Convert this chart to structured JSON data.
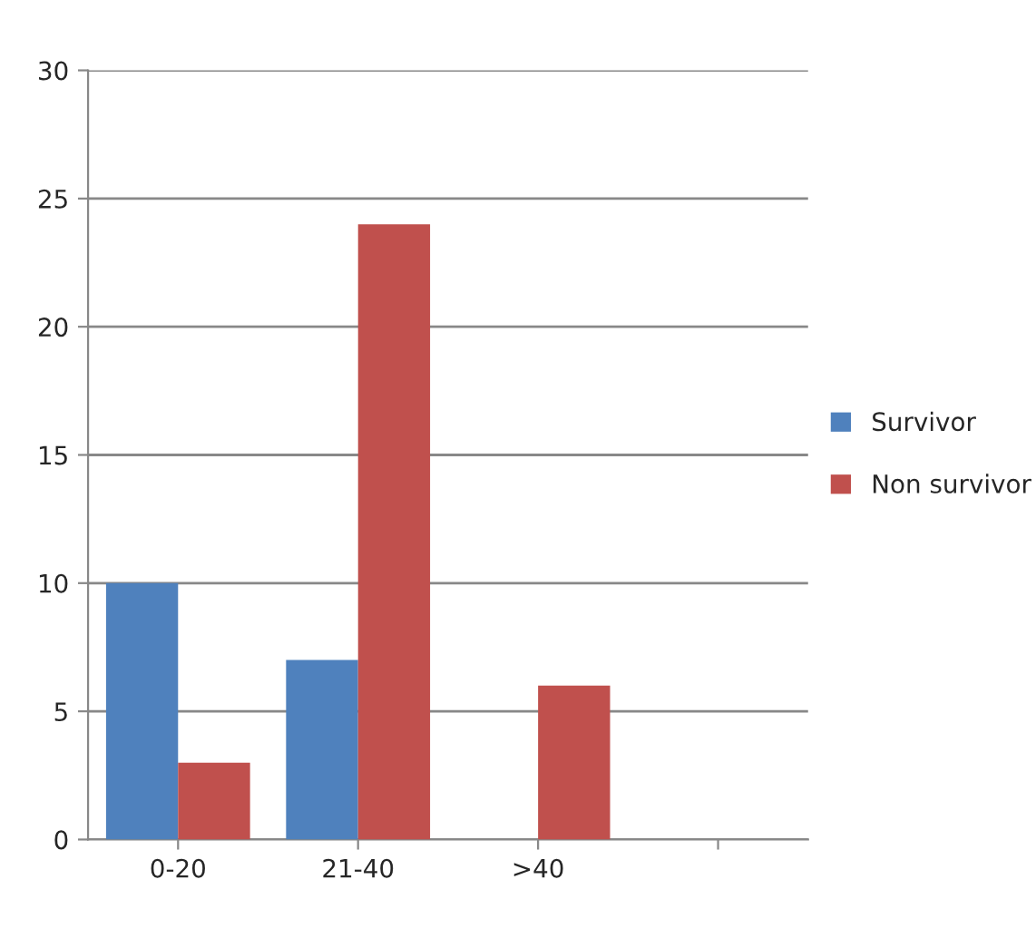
{
  "chart_data": {
    "type": "bar",
    "categories": [
      "0-20",
      "21-40",
      ">40",
      null
    ],
    "series": [
      {
        "name": "Survivor",
        "color": "#4f81bd",
        "values": [
          10,
          7,
          null,
          null
        ]
      },
      {
        "name": "Non survivor",
        "color": "#c0504d",
        "values": [
          3,
          24,
          6,
          null
        ]
      }
    ],
    "ylim": [
      0,
      30
    ],
    "yticks": [
      0,
      5,
      10,
      15,
      20,
      25,
      30
    ],
    "grid": "y",
    "legend": "right"
  }
}
